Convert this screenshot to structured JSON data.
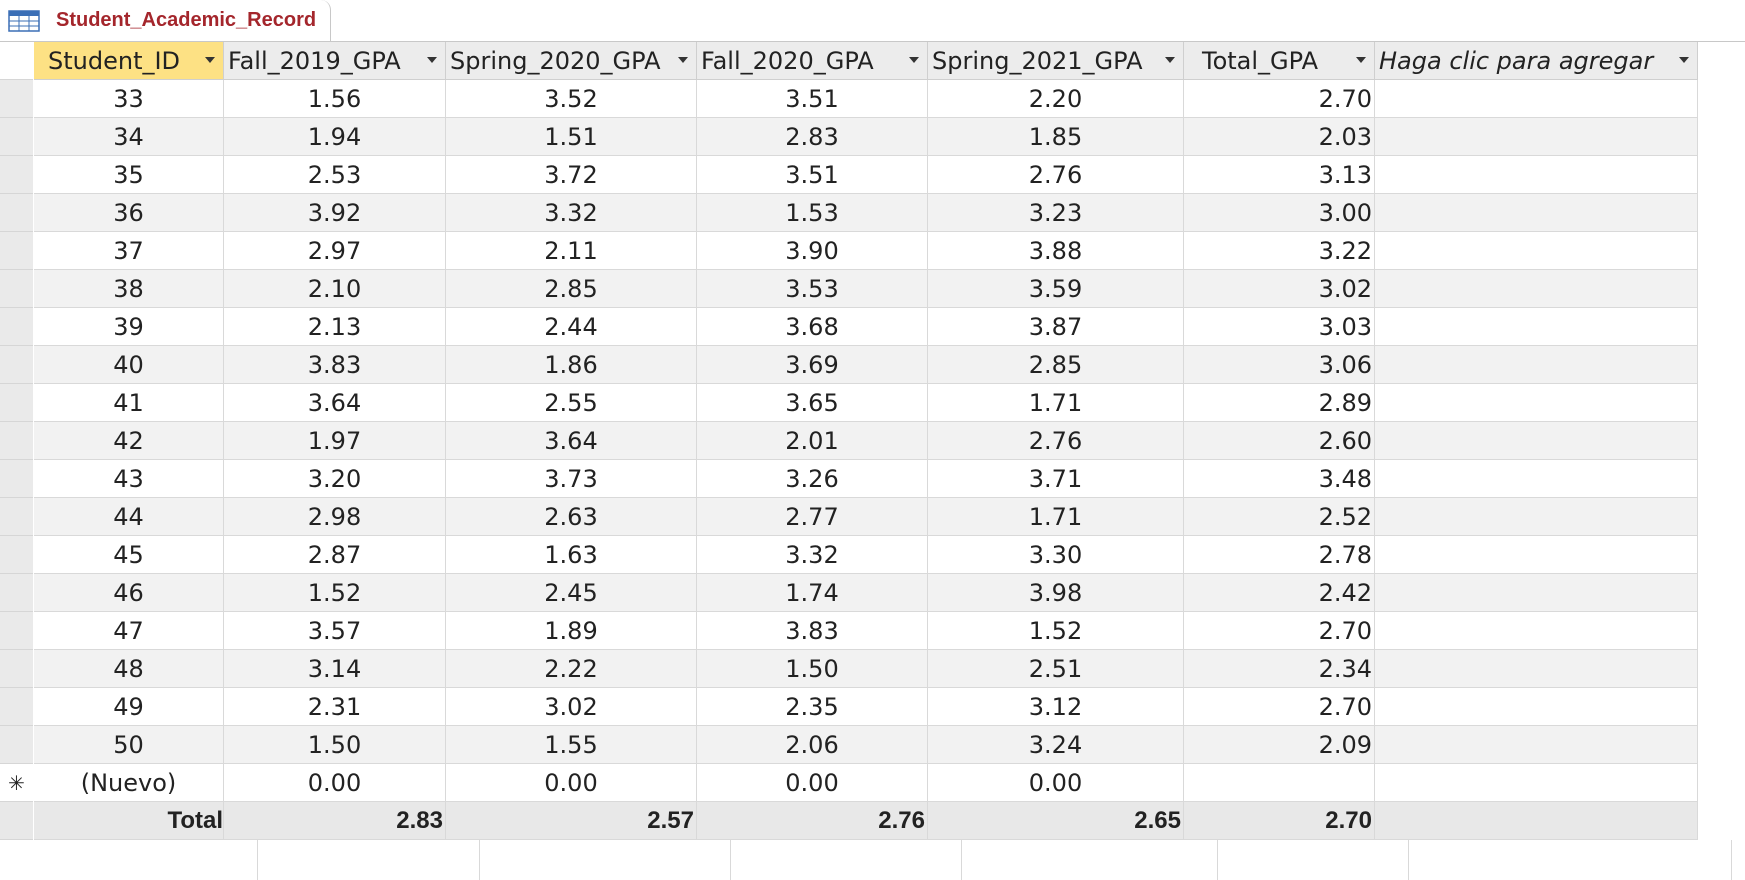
{
  "tab": {
    "title": "Student_Academic_Record",
    "icon": "table-icon"
  },
  "columns": [
    {
      "label": "Student_ID"
    },
    {
      "label": "Fall_2019_GPA"
    },
    {
      "label": "Spring_2020_GPA"
    },
    {
      "label": "Fall_2020_GPA"
    },
    {
      "label": "Spring_2021_GPA"
    },
    {
      "label": "Total_GPA"
    },
    {
      "label": "Haga clic para agregar"
    }
  ],
  "rows": [
    [
      "33",
      "1.56",
      "3.52",
      "3.51",
      "2.20",
      "2.70"
    ],
    [
      "34",
      "1.94",
      "1.51",
      "2.83",
      "1.85",
      "2.03"
    ],
    [
      "35",
      "2.53",
      "3.72",
      "3.51",
      "2.76",
      "3.13"
    ],
    [
      "36",
      "3.92",
      "3.32",
      "1.53",
      "3.23",
      "3.00"
    ],
    [
      "37",
      "2.97",
      "2.11",
      "3.90",
      "3.88",
      "3.22"
    ],
    [
      "38",
      "2.10",
      "2.85",
      "3.53",
      "3.59",
      "3.02"
    ],
    [
      "39",
      "2.13",
      "2.44",
      "3.68",
      "3.87",
      "3.03"
    ],
    [
      "40",
      "3.83",
      "1.86",
      "3.69",
      "2.85",
      "3.06"
    ],
    [
      "41",
      "3.64",
      "2.55",
      "3.65",
      "1.71",
      "2.89"
    ],
    [
      "42",
      "1.97",
      "3.64",
      "2.01",
      "2.76",
      "2.60"
    ],
    [
      "43",
      "3.20",
      "3.73",
      "3.26",
      "3.71",
      "3.48"
    ],
    [
      "44",
      "2.98",
      "2.63",
      "2.77",
      "1.71",
      "2.52"
    ],
    [
      "45",
      "2.87",
      "1.63",
      "3.32",
      "3.30",
      "2.78"
    ],
    [
      "46",
      "1.52",
      "2.45",
      "1.74",
      "3.98",
      "2.42"
    ],
    [
      "47",
      "3.57",
      "1.89",
      "3.83",
      "1.52",
      "2.70"
    ],
    [
      "48",
      "3.14",
      "2.22",
      "1.50",
      "2.51",
      "2.34"
    ],
    [
      "49",
      "2.31",
      "3.02",
      "2.35",
      "3.12",
      "2.70"
    ],
    [
      "50",
      "1.50",
      "1.55",
      "2.06",
      "3.24",
      "2.09"
    ]
  ],
  "new_row": {
    "marker": "✳",
    "values": [
      "(Nuevo)",
      "0.00",
      "0.00",
      "0.00",
      "0.00",
      ""
    ]
  },
  "total_row": {
    "values": [
      "Total",
      "2.83",
      "2.57",
      "2.76",
      "2.65",
      "2.70"
    ]
  },
  "colors": {
    "selected_header": "#fde184",
    "tab_title": "#a4262c",
    "alt_row": "#f2f2f2"
  }
}
